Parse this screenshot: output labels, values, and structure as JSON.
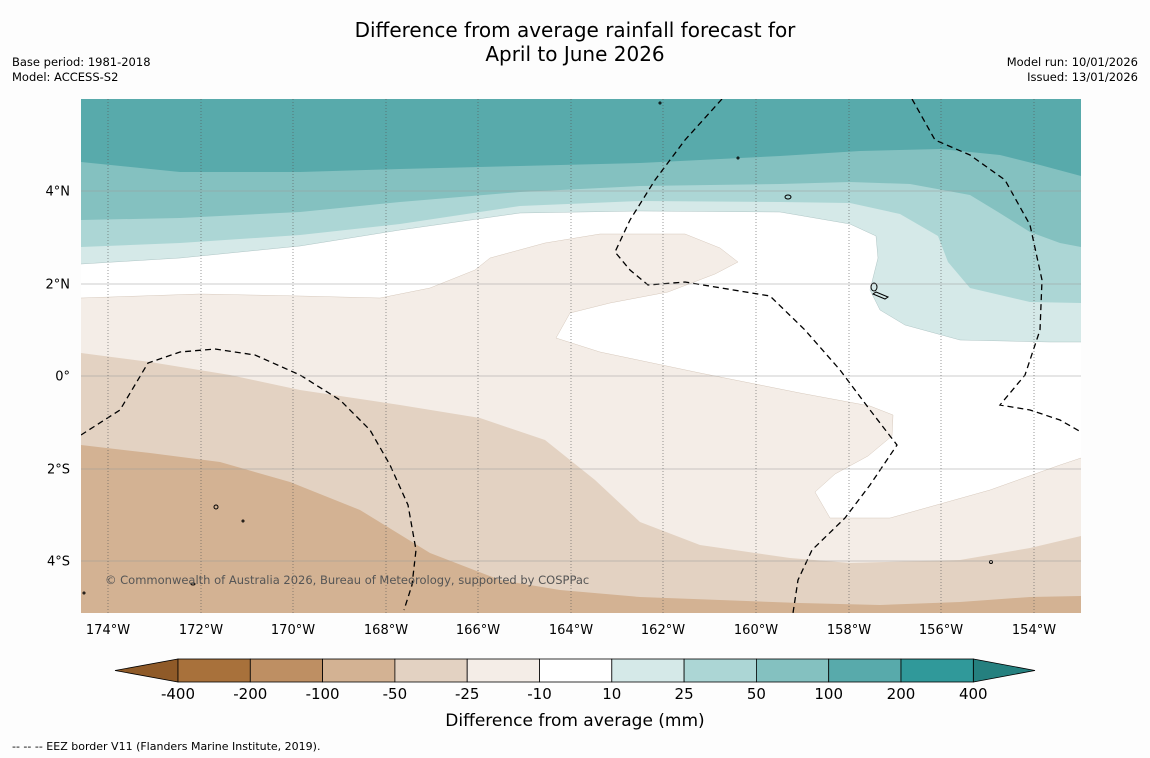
{
  "title": {
    "line1": "Difference from average rainfall forecast for",
    "line2": "April to June 2026"
  },
  "meta_left": {
    "base_period": "Base period: 1981-2018",
    "model": "Model: ACCESS-S2"
  },
  "meta_right": {
    "model_run": "Model run: 10/01/2026",
    "issued": "Issued: 13/01/2026"
  },
  "map": {
    "lat_labels": [
      "4°N",
      "2°N",
      "0°",
      "2°S",
      "4°S"
    ],
    "lon_labels": [
      "174°W",
      "172°W",
      "170°W",
      "168°W",
      "166°W",
      "164°W",
      "162°W",
      "160°W",
      "158°W",
      "156°W",
      "154°W"
    ],
    "copyright": "© Commonwealth of Australia 2026, Bureau of Meteorology, supported by COSPPac",
    "ocean_color": "#ffffff"
  },
  "colorbar": {
    "colors": [
      "#a8713b",
      "#be8f63",
      "#d3b293",
      "#e3d2c2",
      "#f4ede7",
      "#ffffff",
      "#d5e9e8",
      "#acd6d5",
      "#84c1c0",
      "#58aaab",
      "#30999a"
    ],
    "under_color": "#8f5a28",
    "over_color": "#25807f",
    "ticks": [
      "-400",
      "-200",
      "-100",
      "-50",
      "-25",
      "-10",
      "10",
      "25",
      "50",
      "100",
      "200",
      "400"
    ],
    "label": "Difference from average (mm)"
  },
  "footer": {
    "eez_note": "--  --  -- EEZ border V11 (Flanders Marine Institute, 2019)."
  }
}
